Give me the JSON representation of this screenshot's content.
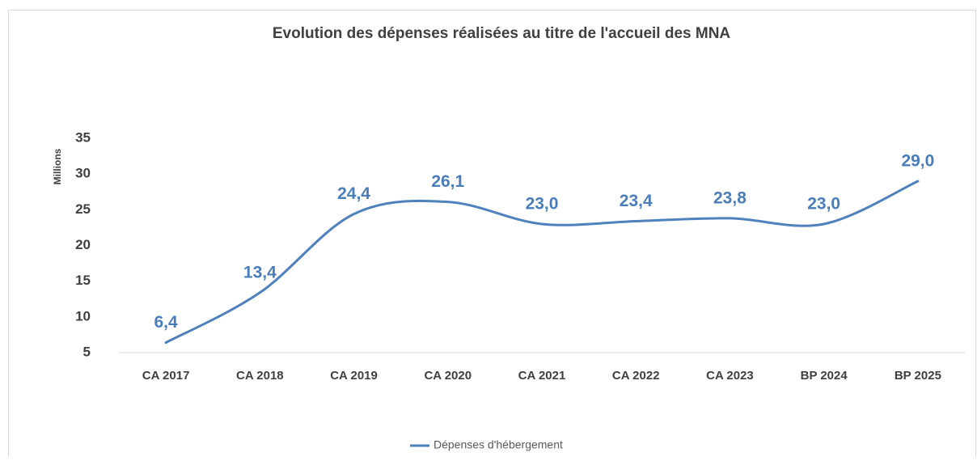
{
  "chart_data": {
    "type": "line",
    "title": "Evolution des dépenses réalisées au titre de l'accueil des MNA",
    "y_label": "Millions",
    "categories": [
      "CA 2017",
      "CA 2018",
      "CA 2019",
      "CA 2020",
      "CA 2021",
      "CA 2022",
      "CA 2023",
      "BP 2024",
      "BP 2025"
    ],
    "series": [
      {
        "name": "Dépenses d'hébergement",
        "color": "#4f81bd",
        "values": [
          6.4,
          13.4,
          24.4,
          26.1,
          23.0,
          23.4,
          23.8,
          23.0,
          29.0
        ],
        "value_labels": [
          "6,4",
          "13,4",
          "24,4",
          "26,1",
          "23,0",
          "23,4",
          "23,8",
          "23,0",
          "29,0"
        ]
      }
    ],
    "ylim": [
      5,
      35
    ],
    "yticks": [
      5,
      10,
      15,
      20,
      25,
      30,
      35
    ],
    "smooth": true,
    "legend": "bottom"
  }
}
